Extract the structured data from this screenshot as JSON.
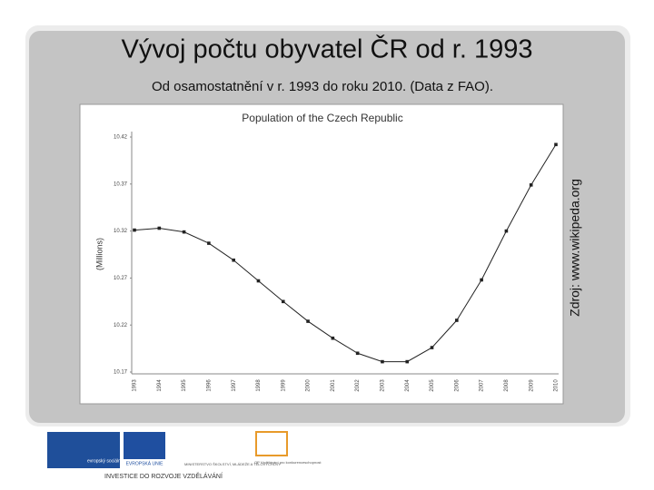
{
  "slide": {
    "title": "Vývoj počtu obyvatel ČR od r. 1993",
    "subtitle": "Od osamostatnění v r. 1993 do roku 2010. (Data z FAO).",
    "source": "Zdroj: www.wikipeda.org"
  },
  "footer": {
    "esf": "evropský sociální fond v ČR",
    "eu": "EVROPSKÁ UNIE",
    "msmt": "MINISTERSTVO ŠKOLSTVÍ, MLÁDEŽE A TĚLOVÝCHOVY",
    "op": "OP Vzdělávání pro konkurenceschopnost",
    "tagline": "INVESTICE DO ROZVOJE VZDĚLÁVÁNÍ"
  },
  "chart_data": {
    "type": "line",
    "title": "Population of the Czech Republic",
    "y_label": "(Millions)",
    "categories": [
      "1993",
      "1994",
      "1995",
      "1996",
      "1997",
      "1998",
      "1999",
      "2000",
      "2001",
      "2002",
      "2003",
      "2004",
      "2005",
      "2006",
      "2007",
      "2008",
      "2009",
      "2010"
    ],
    "values": [
      10.321,
      10.323,
      10.319,
      10.307,
      10.289,
      10.267,
      10.245,
      10.224,
      10.206,
      10.19,
      10.181,
      10.181,
      10.196,
      10.225,
      10.268,
      10.32,
      10.369,
      10.412
    ],
    "color": "#222222",
    "ylim": [
      10.17,
      10.42
    ],
    "yticks": [
      10.17,
      10.22,
      10.27,
      10.32,
      10.37,
      10.42
    ],
    "grid": false
  }
}
